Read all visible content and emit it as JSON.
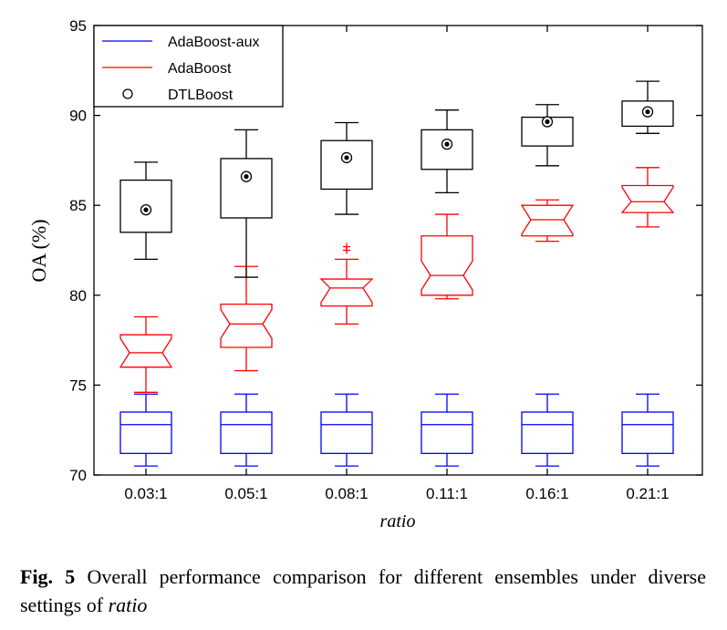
{
  "chart_data": {
    "type": "boxplot",
    "ylabel": "OA (%)",
    "xlabel": "ratio",
    "ylim": [
      70,
      95
    ],
    "yticks": [
      70,
      75,
      80,
      85,
      90,
      95
    ],
    "categories": [
      "0.03:1",
      "0.05:1",
      "0.08:1",
      "0.11:1",
      "0.16:1",
      "0.21:1"
    ],
    "legend": {
      "position": "top-left"
    },
    "grid": false,
    "series": [
      {
        "name": "AdaBoost-aux",
        "color": "#0000ff",
        "style": "box",
        "boxes": [
          {
            "whisker_low": 70.5,
            "q1": 71.2,
            "median": 72.8,
            "q3": 73.5,
            "whisker_high": 74.5
          },
          {
            "whisker_low": 70.5,
            "q1": 71.2,
            "median": 72.8,
            "q3": 73.5,
            "whisker_high": 74.5
          },
          {
            "whisker_low": 70.5,
            "q1": 71.2,
            "median": 72.8,
            "q3": 73.5,
            "whisker_high": 74.5
          },
          {
            "whisker_low": 70.5,
            "q1": 71.2,
            "median": 72.8,
            "q3": 73.5,
            "whisker_high": 74.5
          },
          {
            "whisker_low": 70.5,
            "q1": 71.2,
            "median": 72.8,
            "q3": 73.5,
            "whisker_high": 74.5
          },
          {
            "whisker_low": 70.5,
            "q1": 71.2,
            "median": 72.8,
            "q3": 73.5,
            "whisker_high": 74.5
          }
        ]
      },
      {
        "name": "AdaBoost",
        "color": "#ff0000",
        "style": "notched-box",
        "boxes": [
          {
            "whisker_low": 74.6,
            "q1": 76.0,
            "median": 76.8,
            "q3": 77.8,
            "whisker_high": 78.8,
            "outliers": []
          },
          {
            "whisker_low": 75.8,
            "q1": 77.1,
            "median": 78.4,
            "q3": 79.5,
            "whisker_high": 81.6,
            "outliers": []
          },
          {
            "whisker_low": 78.4,
            "q1": 79.4,
            "median": 80.4,
            "q3": 80.9,
            "whisker_high": 82.0,
            "outliers": [
              82.5,
              82.7
            ]
          },
          {
            "whisker_low": 79.8,
            "q1": 80.0,
            "median": 81.1,
            "q3": 83.3,
            "whisker_high": 84.5,
            "outliers": []
          },
          {
            "whisker_low": 83.0,
            "q1": 83.3,
            "median": 84.2,
            "q3": 85.0,
            "whisker_high": 85.3,
            "outliers": []
          },
          {
            "whisker_low": 83.8,
            "q1": 84.6,
            "median": 85.2,
            "q3": 86.1,
            "whisker_high": 87.1,
            "outliers": []
          }
        ]
      },
      {
        "name": "DTLBoost",
        "color": "#000000",
        "style": "box-with-marker",
        "boxes": [
          {
            "whisker_low": 82.0,
            "q1": 83.5,
            "median": 84.75,
            "q3": 86.4,
            "whisker_high": 87.4
          },
          {
            "whisker_low": 81.0,
            "q1": 84.3,
            "median": 86.6,
            "q3": 87.6,
            "whisker_high": 89.2
          },
          {
            "whisker_low": 84.5,
            "q1": 85.9,
            "median": 87.65,
            "q3": 88.6,
            "whisker_high": 89.6
          },
          {
            "whisker_low": 85.7,
            "q1": 87.0,
            "median": 88.4,
            "q3": 89.2,
            "whisker_high": 90.3
          },
          {
            "whisker_low": 87.2,
            "q1": 88.3,
            "median": 89.65,
            "q3": 89.9,
            "whisker_high": 90.6
          },
          {
            "whisker_low": 89.0,
            "q1": 89.4,
            "median": 90.2,
            "q3": 90.8,
            "whisker_high": 91.9
          }
        ]
      }
    ]
  },
  "caption": {
    "label": "Fig. 5",
    "text": " Overall performance comparison for different ensembles under diverse settings of ",
    "italic": "ratio"
  }
}
